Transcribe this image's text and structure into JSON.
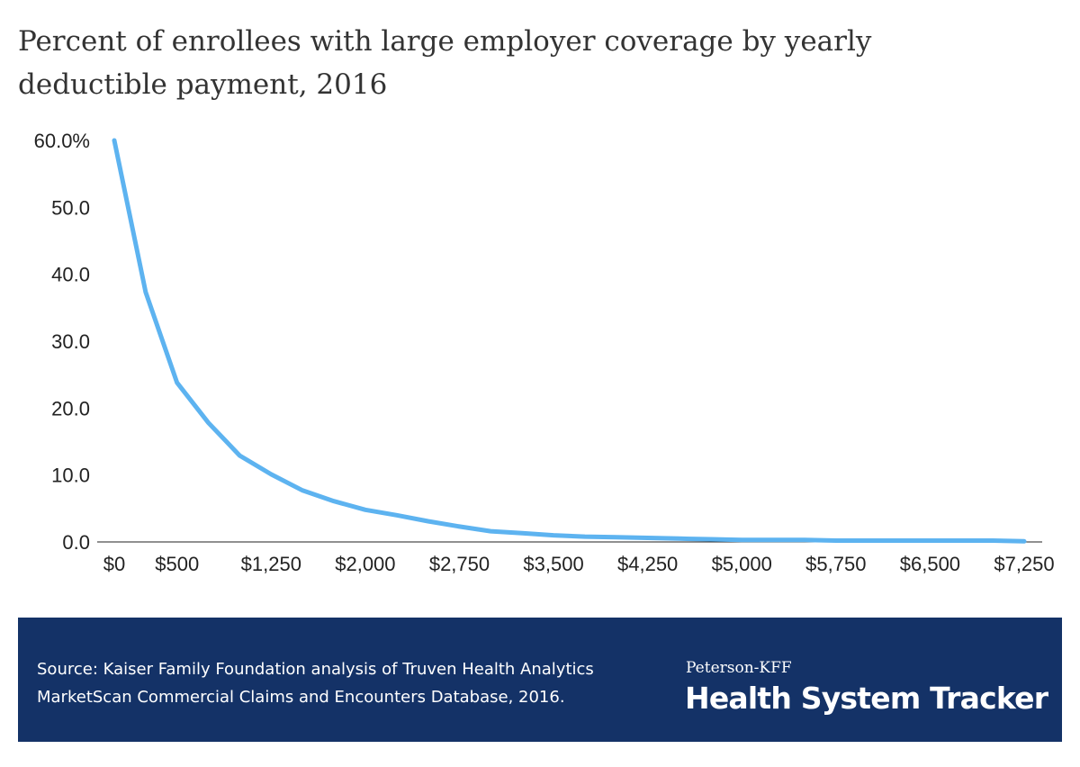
{
  "title": "Percent of enrollees with large employer coverage by yearly deductible payment, 2016",
  "chart_data": {
    "type": "line",
    "title": "Percent of enrollees with large employer coverage by yearly deductible payment, 2016",
    "xlabel": "",
    "ylabel": "",
    "x": [
      0,
      250,
      500,
      750,
      1000,
      1250,
      1500,
      1750,
      2000,
      2250,
      2500,
      2750,
      3000,
      3250,
      3500,
      3750,
      4000,
      4250,
      4500,
      4750,
      5000,
      5250,
      5500,
      5750,
      6000,
      6250,
      6500,
      6750,
      7000,
      7250
    ],
    "series": [
      {
        "values": [
          60.0,
          37.3,
          23.8,
          17.8,
          12.9,
          10.1,
          7.7,
          6.1,
          4.8,
          4.0,
          3.1,
          2.3,
          1.6,
          1.3,
          1.0,
          0.8,
          0.7,
          0.6,
          0.5,
          0.4,
          0.3,
          0.3,
          0.3,
          0.2,
          0.2,
          0.2,
          0.2,
          0.2,
          0.2,
          0.1
        ],
        "color": "#5db3f0"
      }
    ],
    "x_tick_labels": [
      "$0",
      "$500",
      "$1,250",
      "$2,000",
      "$2,750",
      "$3,500",
      "$4,250",
      "$5,000",
      "$5,750",
      "$6,500",
      "$7,250"
    ],
    "x_tick_values": [
      0,
      500,
      1250,
      2000,
      2750,
      3500,
      4250,
      5000,
      5750,
      6500,
      7250
    ],
    "y_tick_labels": [
      "60.0%",
      "50.0",
      "40.0",
      "30.0",
      "20.0",
      "10.0",
      "0.0"
    ],
    "y_tick_values": [
      60,
      50,
      40,
      30,
      20,
      10,
      0
    ],
    "ylim": [
      0,
      60
    ],
    "xlim": [
      0,
      7250
    ],
    "grid": false,
    "legend": "none"
  },
  "footer": {
    "source": "Source: Kaiser Family Foundation analysis of Truven Health Analytics MarketScan Commercial Claims and Encounters Database, 2016.",
    "brand_small": "Peterson-KFF",
    "brand_big": "Health System Tracker",
    "background": "#143267"
  }
}
